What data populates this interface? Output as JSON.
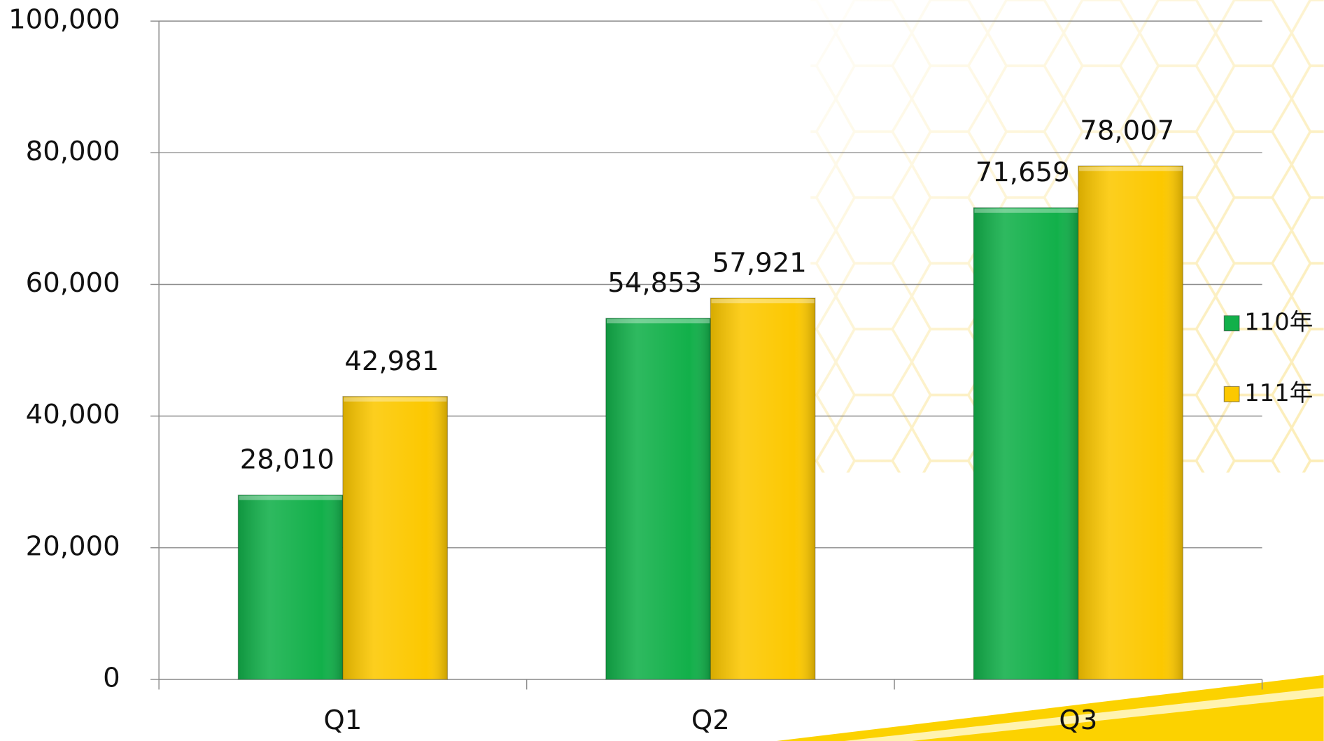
{
  "chart_data": {
    "type": "bar",
    "categories": [
      "Q1",
      "Q2",
      "Q3"
    ],
    "series": [
      {
        "name": "110年",
        "color": "#12b04a",
        "values": [
          28010,
          54853,
          71659
        ],
        "value_labels": [
          "28,010",
          "54,853",
          "71,659"
        ]
      },
      {
        "name": "111年",
        "color": "#fcc800",
        "values": [
          42981,
          57921,
          78007
        ],
        "value_labels": [
          "42,981",
          "57,921",
          "78,007"
        ]
      }
    ],
    "ylim": [
      0,
      100000
    ],
    "yticks": [
      0,
      {
        "value": 20000,
        "label": "20,000"
      },
      {
        "value": 40000,
        "label": "40,000"
      },
      {
        "value": 60000,
        "label": "60,000"
      },
      {
        "value": 80000,
        "label": "80,000"
      },
      {
        "value": 100000,
        "label": "100,000"
      }
    ],
    "grid": true,
    "legend": "right"
  }
}
